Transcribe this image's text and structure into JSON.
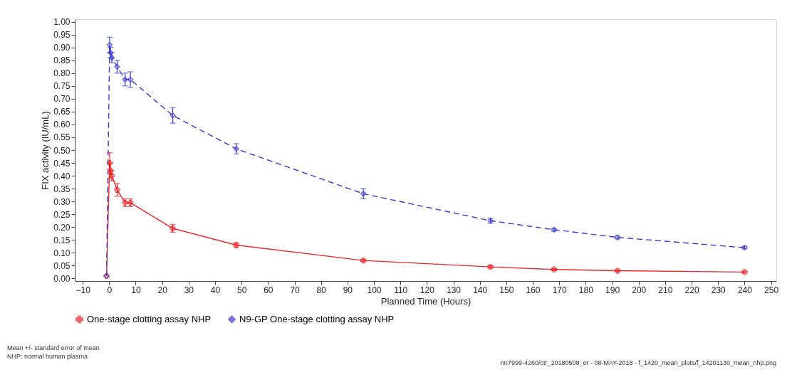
{
  "chart_data": {
    "type": "line",
    "xlabel": "Planned Time (Hours)",
    "ylabel": "FIX activity (IU/mL)",
    "x": [
      -1,
      0.17,
      0.5,
      1,
      3,
      6,
      8,
      24,
      48,
      96,
      144,
      168,
      192,
      240
    ],
    "series": [
      {
        "name": "One-stage clotting assay NHP",
        "color": "#e8262c",
        "line_style": "solid",
        "marker": "cross",
        "values": [
          0.01,
          0.45,
          0.42,
          0.4,
          0.345,
          0.295,
          0.295,
          0.195,
          0.13,
          0.07,
          0.045,
          0.035,
          0.03,
          0.025
        ],
        "errors": [
          null,
          0.04,
          0.03,
          0.02,
          0.025,
          0.015,
          0.015,
          0.015,
          0.01,
          0.005,
          0.005,
          0.004,
          0.004,
          0.004
        ]
      },
      {
        "name": "N9-GP One-stage clotting assay NHP",
        "color": "#3a3acc",
        "line_style": "dashed",
        "marker": "diamond",
        "values": [
          0.01,
          0.91,
          0.88,
          0.86,
          0.825,
          0.775,
          0.775,
          0.635,
          0.505,
          0.33,
          0.225,
          0.19,
          0.16,
          0.12
        ],
        "errors": [
          null,
          0.03,
          0.02,
          0.02,
          0.025,
          0.025,
          0.03,
          0.03,
          0.02,
          0.02,
          0.01,
          0.006,
          0.006,
          0.005
        ]
      }
    ],
    "xlim": [
      -13,
      252
    ],
    "xticks": [
      -10,
      0,
      10,
      20,
      30,
      40,
      50,
      60,
      70,
      80,
      90,
      100,
      110,
      120,
      130,
      140,
      150,
      160,
      170,
      180,
      190,
      200,
      210,
      220,
      230,
      240,
      250
    ],
    "ylim": [
      -0.01,
      1.01
    ],
    "yticks": [
      {
        "value": 0,
        "label": "0.00"
      },
      {
        "value": 0.05,
        "label": "0.05"
      },
      {
        "value": 0.1,
        "label": "0.10"
      },
      {
        "value": 0.15,
        "label": "0.15"
      },
      {
        "value": 0.2,
        "label": "0.20"
      },
      {
        "value": 0.25,
        "label": "0.25"
      },
      {
        "value": 0.3,
        "label": "0.30"
      },
      {
        "value": 0.35,
        "label": "0.35"
      },
      {
        "value": 0.4,
        "label": "0.40"
      },
      {
        "value": 0.45,
        "label": "0.45"
      },
      {
        "value": 0.5,
        "label": "0.50"
      },
      {
        "value": 0.55,
        "label": "0.55"
      },
      {
        "value": 0.6,
        "label": "0.60"
      },
      {
        "value": 0.65,
        "label": "0.65"
      },
      {
        "value": 0.7,
        "label": "0.70"
      },
      {
        "value": 0.75,
        "label": "0.75"
      },
      {
        "value": 0.8,
        "label": "0.80"
      },
      {
        "value": 0.85,
        "label": "0.85"
      },
      {
        "value": 0.9,
        "label": "0.90"
      },
      {
        "value": 0.95,
        "label": "0.95"
      },
      {
        "value": 1,
        "label": "1.00"
      }
    ],
    "grid": false,
    "legend": "bottom",
    "annotations": [
      "Mean +/- standard error of mean",
      "NHP: normal human plasma",
      "nn7999-4260/ctr_20180508_er - 08-MAY-2018 - f_1420_mean_plots/f_14201130_mean_nhp.png"
    ]
  }
}
